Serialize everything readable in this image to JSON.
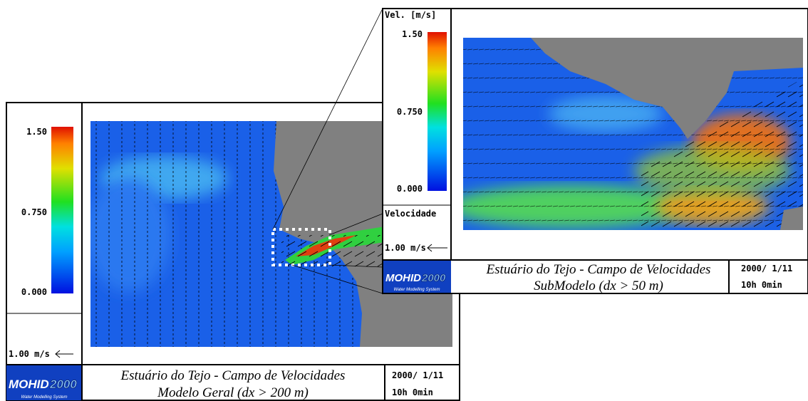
{
  "left_panel": {
    "colorbar": {
      "ticks": [
        "1.50",
        "0.750",
        "0.000"
      ]
    },
    "scale_label": "1.00 m/s",
    "logo": {
      "name": "MOHID",
      "year": "2000",
      "tagline": "Water Modelling System"
    },
    "title": [
      "Estuário do Tejo - Campo de Velocidades",
      "Modelo Geral (dx > 200 m)"
    ],
    "date": "2000/ 1/11",
    "time": "10h 0min"
  },
  "right_panel": {
    "colorbar": {
      "title": "Vel. [m/s]",
      "ticks": [
        "1.50",
        "0.750",
        "0.000"
      ]
    },
    "speed_label": "Velocidade",
    "scale_label": "1.00 m/s",
    "logo": {
      "name": "MOHID",
      "year": "2000",
      "tagline": "Water Modelling System"
    },
    "title": [
      "Estuário do Tejo - Campo de Velocidades",
      "SubModelo (dx > 50 m)"
    ],
    "date": "2000/ 1/11",
    "time": "10h 0min"
  }
}
